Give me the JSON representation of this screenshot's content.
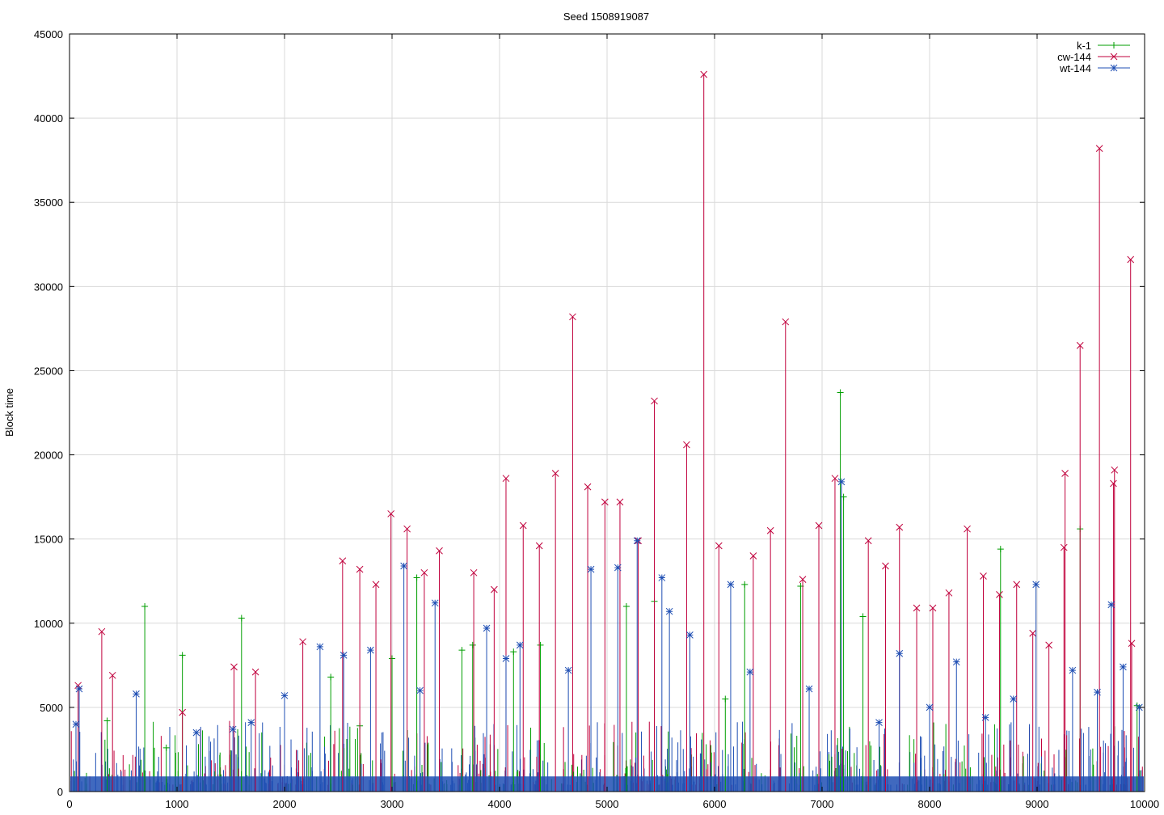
{
  "chart_data": {
    "type": "line",
    "title": "Seed 1508919087",
    "xlabel": "",
    "ylabel": "Block time",
    "xlim": [
      0,
      10000
    ],
    "ylim": [
      0,
      45000
    ],
    "x_ticks": [
      "0",
      "1000",
      "2000",
      "3000",
      "4000",
      "5000",
      "6000",
      "7000",
      "8000",
      "9000",
      "10000"
    ],
    "y_ticks": [
      "0",
      "5000",
      "10000",
      "15000",
      "20000",
      "25000",
      "30000",
      "35000",
      "40000",
      "45000"
    ],
    "grid": true,
    "legend_position": "top-right",
    "series": [
      {
        "name": "k-1",
        "color": "#009e00",
        "marker": "+",
        "points": [
          [
            700,
            11000
          ],
          [
            1050,
            8100
          ],
          [
            1600,
            10300
          ],
          [
            2430,
            6800
          ],
          [
            3000,
            7900
          ],
          [
            3230,
            12700
          ],
          [
            3650,
            8400
          ],
          [
            3750,
            8700
          ],
          [
            4130,
            8300
          ],
          [
            4380,
            8700
          ],
          [
            5180,
            11000
          ],
          [
            5440,
            11300
          ],
          [
            6280,
            12300
          ],
          [
            6800,
            12200
          ],
          [
            7170,
            23700
          ],
          [
            7200,
            17500
          ],
          [
            7380,
            10400
          ],
          [
            8660,
            14400
          ],
          [
            9400,
            15600
          ],
          [
            9930,
            5100
          ],
          [
            350,
            4200
          ],
          [
            900,
            2600
          ],
          [
            2700,
            3900
          ],
          [
            6100,
            5500
          ]
        ]
      },
      {
        "name": "cw-144",
        "color": "#c0003c",
        "marker": "x",
        "points": [
          [
            80,
            6300
          ],
          [
            300,
            9500
          ],
          [
            400,
            6900
          ],
          [
            1050,
            4700
          ],
          [
            1530,
            7400
          ],
          [
            1730,
            7100
          ],
          [
            2170,
            8900
          ],
          [
            2540,
            13700
          ],
          [
            2700,
            13200
          ],
          [
            2850,
            12300
          ],
          [
            2990,
            16500
          ],
          [
            3140,
            15600
          ],
          [
            3300,
            13000
          ],
          [
            3440,
            14300
          ],
          [
            3760,
            13000
          ],
          [
            3950,
            12000
          ],
          [
            4060,
            18600
          ],
          [
            4220,
            15800
          ],
          [
            4370,
            14600
          ],
          [
            4520,
            18900
          ],
          [
            4680,
            28200
          ],
          [
            4820,
            18100
          ],
          [
            4980,
            17200
          ],
          [
            5120,
            17200
          ],
          [
            5290,
            14900
          ],
          [
            5440,
            23200
          ],
          [
            5740,
            20600
          ],
          [
            5900,
            42600
          ],
          [
            6040,
            14600
          ],
          [
            6360,
            14000
          ],
          [
            6520,
            15500
          ],
          [
            6660,
            27900
          ],
          [
            6820,
            12600
          ],
          [
            6970,
            15800
          ],
          [
            7120,
            18600
          ],
          [
            7430,
            14900
          ],
          [
            7590,
            13400
          ],
          [
            7720,
            15700
          ],
          [
            7880,
            10900
          ],
          [
            8030,
            10900
          ],
          [
            8180,
            11800
          ],
          [
            8350,
            15600
          ],
          [
            8500,
            12800
          ],
          [
            8650,
            11700
          ],
          [
            8810,
            12300
          ],
          [
            8960,
            9400
          ],
          [
            9110,
            8700
          ],
          [
            9250,
            14500
          ],
          [
            9260,
            18900
          ],
          [
            9400,
            26500
          ],
          [
            9580,
            38200
          ],
          [
            9720,
            19100
          ],
          [
            9710,
            18300
          ],
          [
            9870,
            31600
          ],
          [
            9880,
            8800
          ]
        ]
      },
      {
        "name": "wt-144",
        "color": "#1f4fb4",
        "marker": "*",
        "points": [
          [
            60,
            4000
          ],
          [
            90,
            6100
          ],
          [
            620,
            5800
          ],
          [
            1180,
            3500
          ],
          [
            1520,
            3700
          ],
          [
            1690,
            4100
          ],
          [
            2000,
            5700
          ],
          [
            2330,
            8600
          ],
          [
            2550,
            8100
          ],
          [
            2800,
            8400
          ],
          [
            3110,
            13400
          ],
          [
            3260,
            6000
          ],
          [
            3400,
            11200
          ],
          [
            3880,
            9700
          ],
          [
            4060,
            7900
          ],
          [
            4190,
            8700
          ],
          [
            4640,
            7200
          ],
          [
            4850,
            13200
          ],
          [
            5100,
            13300
          ],
          [
            5280,
            14900
          ],
          [
            5510,
            12700
          ],
          [
            5580,
            10700
          ],
          [
            5770,
            9300
          ],
          [
            6150,
            12300
          ],
          [
            6330,
            7100
          ],
          [
            6880,
            6100
          ],
          [
            7180,
            18400
          ],
          [
            7530,
            4100
          ],
          [
            7720,
            8200
          ],
          [
            8000,
            5000
          ],
          [
            8250,
            7700
          ],
          [
            8520,
            4400
          ],
          [
            8780,
            5500
          ],
          [
            8990,
            12300
          ],
          [
            9330,
            7200
          ],
          [
            9560,
            5900
          ],
          [
            9690,
            11100
          ],
          [
            9800,
            7400
          ],
          [
            9950,
            5000
          ]
        ]
      }
    ]
  }
}
